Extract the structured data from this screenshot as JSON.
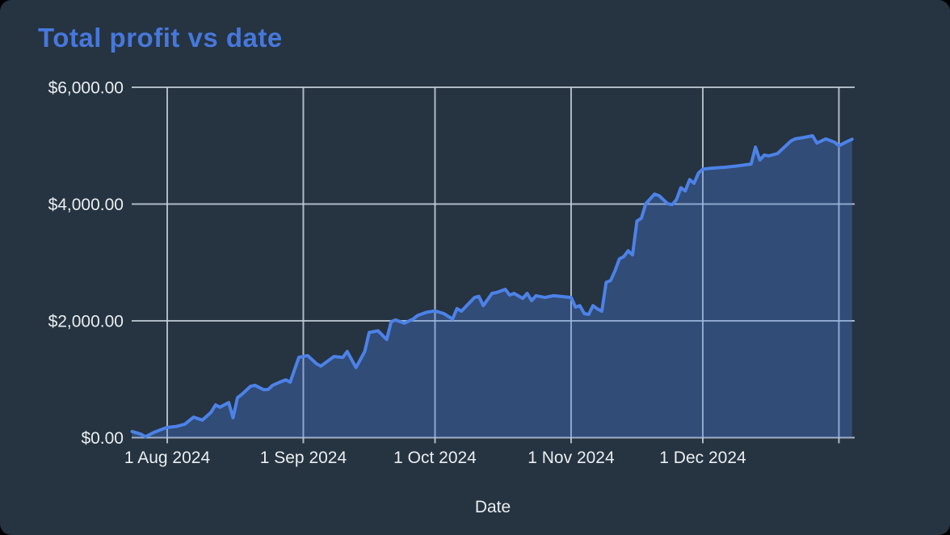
{
  "window": {
    "title": "Total profit vs date"
  },
  "theme": {
    "background": "#263340",
    "title_color": "#4678DC",
    "text_color": "#E9EEF2",
    "grid_color": "#C5D1DB",
    "line_color": "#4C82E8",
    "fill_color": "rgba(76,130,232,0.32)"
  },
  "chart_data": {
    "type": "area",
    "title": "Total profit vs date",
    "xlabel": "Date",
    "ylabel": "",
    "ylim": [
      0,
      6000
    ],
    "grid": true,
    "legend": "none",
    "y_ticks": [
      {
        "value": 0,
        "label": "$0.00"
      },
      {
        "value": 2000,
        "label": "$2,000.00"
      },
      {
        "value": 4000,
        "label": "$4,000.00"
      },
      {
        "value": 6000,
        "label": "$6,000.00"
      }
    ],
    "x_ticks": [
      {
        "date": "2024-08-01",
        "label": "1 Aug 2024"
      },
      {
        "date": "2024-09-01",
        "label": "1 Sep 2024"
      },
      {
        "date": "2024-10-01",
        "label": "1 Oct 2024"
      },
      {
        "date": "2024-11-01",
        "label": "1 Nov 2024"
      },
      {
        "date": "2024-12-01",
        "label": "1 Dec 2024"
      },
      {
        "date": "2025-01-01",
        "label": ""
      }
    ],
    "series_name": "Total profit",
    "dates": [
      "2024-07-24",
      "2024-07-26",
      "2024-07-27",
      "2024-07-29",
      "2024-07-31",
      "2024-08-01",
      "2024-08-03",
      "2024-08-05",
      "2024-08-07",
      "2024-08-09",
      "2024-08-11",
      "2024-08-12",
      "2024-08-13",
      "2024-08-15",
      "2024-08-16",
      "2024-08-17",
      "2024-08-18",
      "2024-08-20",
      "2024-08-21",
      "2024-08-23",
      "2024-08-24",
      "2024-08-25",
      "2024-08-27",
      "2024-08-28",
      "2024-08-29",
      "2024-08-31",
      "2024-09-01",
      "2024-09-02",
      "2024-09-04",
      "2024-09-05",
      "2024-09-08",
      "2024-09-10",
      "2024-09-11",
      "2024-09-13",
      "2024-09-15",
      "2024-09-16",
      "2024-09-18",
      "2024-09-20",
      "2024-09-21",
      "2024-09-22",
      "2024-09-24",
      "2024-09-26",
      "2024-09-27",
      "2024-09-29",
      "2024-10-01",
      "2024-10-03",
      "2024-10-05",
      "2024-10-06",
      "2024-10-07",
      "2024-10-10",
      "2024-10-11",
      "2024-10-12",
      "2024-10-14",
      "2024-10-15",
      "2024-10-17",
      "2024-10-18",
      "2024-10-19",
      "2024-10-21",
      "2024-10-22",
      "2024-10-23",
      "2024-10-24",
      "2024-10-26",
      "2024-10-28",
      "2024-10-30",
      "2024-11-01",
      "2024-11-02",
      "2024-11-03",
      "2024-11-04",
      "2024-11-05",
      "2024-11-06",
      "2024-11-07",
      "2024-11-08",
      "2024-11-09",
      "2024-11-10",
      "2024-11-11",
      "2024-11-12",
      "2024-11-13",
      "2024-11-14",
      "2024-11-15",
      "2024-11-16",
      "2024-11-17",
      "2024-11-18",
      "2024-11-20",
      "2024-11-21",
      "2024-11-23",
      "2024-11-24",
      "2024-11-25",
      "2024-11-26",
      "2024-11-27",
      "2024-11-28",
      "2024-11-29",
      "2024-11-30",
      "2024-12-01",
      "2024-12-03",
      "2024-12-06",
      "2024-12-09",
      "2024-12-12",
      "2024-12-13",
      "2024-12-14",
      "2024-12-15",
      "2024-12-16",
      "2024-12-18",
      "2024-12-20",
      "2024-12-21",
      "2024-12-22",
      "2024-12-24",
      "2024-12-26",
      "2024-12-27",
      "2024-12-29",
      "2024-12-31",
      "2025-01-01",
      "2025-01-03",
      "2025-01-04"
    ],
    "values": [
      105,
      60,
      15,
      90,
      150,
      175,
      190,
      230,
      350,
      300,
      435,
      560,
      520,
      600,
      340,
      685,
      740,
      880,
      895,
      820,
      825,
      895,
      960,
      990,
      950,
      1375,
      1390,
      1405,
      1265,
      1225,
      1390,
      1375,
      1475,
      1200,
      1475,
      1800,
      1830,
      1680,
      1985,
      2015,
      1960,
      2030,
      2090,
      2145,
      2170,
      2125,
      2030,
      2210,
      2165,
      2400,
      2420,
      2260,
      2470,
      2485,
      2540,
      2440,
      2470,
      2385,
      2470,
      2345,
      2430,
      2400,
      2430,
      2415,
      2400,
      2235,
      2260,
      2125,
      2110,
      2260,
      2205,
      2165,
      2660,
      2690,
      2855,
      3060,
      3100,
      3200,
      3130,
      3710,
      3755,
      4005,
      4170,
      4145,
      4005,
      3990,
      4075,
      4280,
      4225,
      4420,
      4355,
      4530,
      4600,
      4615,
      4630,
      4655,
      4685,
      4975,
      4755,
      4840,
      4825,
      4865,
      5005,
      5075,
      5115,
      5140,
      5170,
      5045,
      5115,
      5060,
      5000,
      5075,
      5110
    ]
  }
}
